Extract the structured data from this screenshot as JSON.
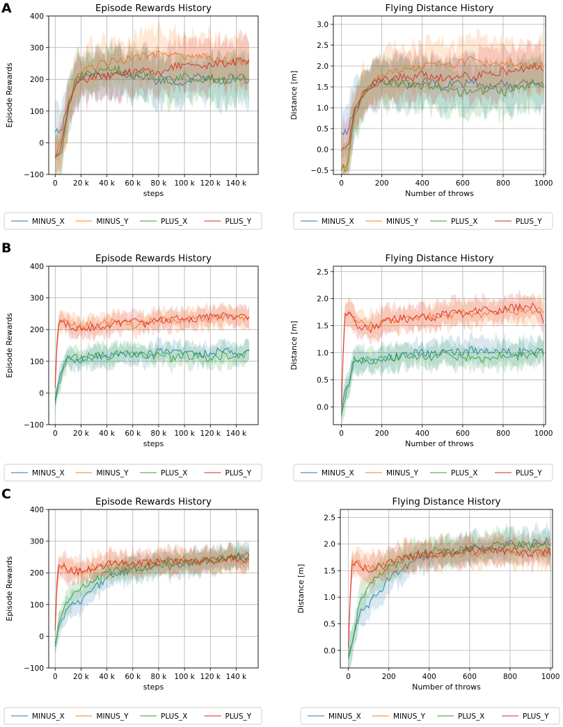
{
  "figure": {
    "panel_labels": [
      "A",
      "B",
      "C"
    ],
    "series_colors": {
      "MINUS_X": "#1f77b4",
      "MINUS_Y": "#ff7f0e",
      "PLUS_X": "#2ca02c",
      "PLUS_Y": "#d62728"
    }
  },
  "chart_data": [
    {
      "id": "A-rewards",
      "panel": "A",
      "type": "line",
      "title": "Episode Rewards History",
      "xlabel": "steps",
      "ylabel": "Episode Rewards",
      "xlim": [
        -5000,
        157000
      ],
      "ylim": [
        -100,
        400
      ],
      "xticks": [
        0,
        20000,
        40000,
        60000,
        80000,
        100000,
        120000,
        140000
      ],
      "xtick_labels": [
        "0",
        "20 k",
        "40 k",
        "60 k",
        "80 k",
        "100 k",
        "120 k",
        "140 k"
      ],
      "yticks": [
        -100,
        0,
        100,
        200,
        300,
        400
      ],
      "ytick_labels": [
        "−100",
        "0",
        "100",
        "200",
        "300",
        "400"
      ],
      "x": [
        0,
        5000,
        10000,
        15000,
        20000,
        30000,
        40000,
        50000,
        60000,
        70000,
        80000,
        90000,
        100000,
        110000,
        120000,
        130000,
        140000,
        150000
      ],
      "band": 70,
      "legend": [
        "MINUS_X",
        "MINUS_Y",
        "PLUS_X",
        "PLUS_Y"
      ],
      "series": [
        {
          "name": "MINUS_X",
          "values": [
            40,
            45,
            120,
            180,
            210,
            220,
            215,
            220,
            205,
            210,
            190,
            200,
            185,
            210,
            205,
            195,
            205,
            195
          ]
        },
        {
          "name": "MINUS_Y",
          "values": [
            -40,
            0,
            110,
            190,
            220,
            240,
            255,
            260,
            265,
            275,
            280,
            285,
            270,
            275,
            265,
            260,
            255,
            250
          ]
        },
        {
          "name": "PLUS_X",
          "values": [
            -40,
            -35,
            100,
            190,
            215,
            225,
            240,
            230,
            215,
            220,
            200,
            195,
            210,
            190,
            205,
            195,
            215,
            200
          ]
        },
        {
          "name": "PLUS_Y",
          "values": [
            -40,
            -10,
            110,
            180,
            200,
            205,
            210,
            215,
            225,
            230,
            215,
            240,
            245,
            235,
            245,
            250,
            255,
            260
          ]
        }
      ]
    },
    {
      "id": "A-distance",
      "panel": "A",
      "type": "line",
      "title": "Flying Distance History",
      "xlabel": "Number of throws",
      "ylabel": "Distance [m]",
      "xlim": [
        -40,
        1010
      ],
      "ylim": [
        -0.6,
        3.2
      ],
      "xticks": [
        0,
        200,
        400,
        600,
        800,
        1000
      ],
      "xtick_labels": [
        "0",
        "200",
        "400",
        "600",
        "800",
        "1000"
      ],
      "yticks": [
        -0.5,
        0.0,
        0.5,
        1.0,
        1.5,
        2.0,
        2.5,
        3.0
      ],
      "ytick_labels": [
        "−0.5",
        "0.0",
        "0.5",
        "1.0",
        "1.5",
        "2.0",
        "2.5",
        "3.0"
      ],
      "x": [
        0,
        30,
        60,
        100,
        150,
        200,
        250,
        300,
        350,
        400,
        450,
        500,
        550,
        600,
        650,
        700,
        750,
        800,
        850,
        900,
        950,
        1000
      ],
      "band": 0.55,
      "legend": [
        "MINUS_X",
        "MINUS_Y",
        "PLUS_X",
        "PLUS_Y"
      ],
      "series": [
        {
          "name": "MINUS_X",
          "values": [
            0.45,
            0.42,
            0.9,
            1.3,
            1.5,
            1.6,
            1.65,
            1.6,
            1.55,
            1.6,
            1.65,
            1.5,
            1.6,
            1.55,
            1.65,
            1.5,
            1.55,
            1.6,
            1.5,
            1.65,
            1.6,
            1.55
          ]
        },
        {
          "name": "MINUS_Y",
          "values": [
            -0.45,
            -0.4,
            0.8,
            1.3,
            1.6,
            1.75,
            1.85,
            1.9,
            1.95,
            2.0,
            2.05,
            2.1,
            2.0,
            2.1,
            2.15,
            2.05,
            2.1,
            2.0,
            2.1,
            2.05,
            2.0,
            2.0
          ]
        },
        {
          "name": "PLUS_X",
          "values": [
            -0.45,
            -0.45,
            0.7,
            1.25,
            1.55,
            1.65,
            1.6,
            1.55,
            1.5,
            1.55,
            1.45,
            1.5,
            1.4,
            1.35,
            1.45,
            1.4,
            1.5,
            1.35,
            1.45,
            1.5,
            1.55,
            1.6
          ]
        },
        {
          "name": "PLUS_Y",
          "values": [
            0.0,
            0.0,
            0.85,
            1.3,
            1.55,
            1.65,
            1.7,
            1.75,
            1.7,
            1.8,
            1.75,
            1.7,
            1.75,
            1.8,
            1.7,
            1.85,
            1.8,
            1.9,
            1.85,
            1.95,
            2.0,
            1.95
          ]
        }
      ]
    },
    {
      "id": "B-rewards",
      "panel": "B",
      "type": "line",
      "title": "Episode Rewards History",
      "xlabel": "steps",
      "ylabel": "Episode Rewards",
      "xlim": [
        -5000,
        157000
      ],
      "ylim": [
        -100,
        400
      ],
      "xticks": [
        0,
        20000,
        40000,
        60000,
        80000,
        100000,
        120000,
        140000
      ],
      "xtick_labels": [
        "0",
        "20 k",
        "40 k",
        "60 k",
        "80 k",
        "100 k",
        "120 k",
        "140 k"
      ],
      "yticks": [
        -100,
        0,
        100,
        200,
        300,
        400
      ],
      "ytick_labels": [
        "−100",
        "0",
        "100",
        "200",
        "300",
        "400"
      ],
      "x": [
        0,
        2000,
        5000,
        10000,
        15000,
        20000,
        30000,
        40000,
        50000,
        60000,
        70000,
        80000,
        90000,
        100000,
        110000,
        120000,
        130000,
        140000,
        150000
      ],
      "band": 30,
      "legend": [
        "MINUS_X",
        "MINUS_Y",
        "PLUS_X",
        "PLUS_Y"
      ],
      "series": [
        {
          "name": "MINUS_X",
          "values": [
            -20,
            30,
            60,
            110,
            105,
            100,
            115,
            120,
            125,
            125,
            120,
            130,
            125,
            130,
            120,
            125,
            135,
            130,
            135
          ]
        },
        {
          "name": "MINUS_Y",
          "values": [
            30,
            225,
            225,
            220,
            215,
            210,
            215,
            220,
            225,
            215,
            225,
            230,
            225,
            235,
            230,
            235,
            240,
            235,
            240
          ]
        },
        {
          "name": "PLUS_X",
          "values": [
            -30,
            20,
            50,
            115,
            120,
            110,
            120,
            115,
            125,
            120,
            115,
            120,
            110,
            120,
            115,
            110,
            120,
            115,
            130
          ]
        },
        {
          "name": "PLUS_Y",
          "values": [
            20,
            220,
            225,
            215,
            205,
            200,
            210,
            215,
            220,
            225,
            215,
            230,
            235,
            230,
            235,
            240,
            245,
            240,
            235
          ]
        }
      ]
    },
    {
      "id": "B-distance",
      "panel": "B",
      "type": "line",
      "title": "Flying Distance History",
      "xlabel": "Number of throws",
      "ylabel": "Distance [m]",
      "xlim": [
        -40,
        1010
      ],
      "ylim": [
        -0.33,
        2.6
      ],
      "xticks": [
        0,
        200,
        400,
        600,
        800,
        1000
      ],
      "xtick_labels": [
        "0",
        "200",
        "400",
        "600",
        "800",
        "1000"
      ],
      "yticks": [
        0.0,
        0.5,
        1.0,
        1.5,
        2.0,
        2.5
      ],
      "ytick_labels": [
        "0.0",
        "0.5",
        "1.0",
        "1.5",
        "2.0",
        "2.5"
      ],
      "x": [
        0,
        15,
        40,
        60,
        100,
        150,
        200,
        250,
        300,
        350,
        400,
        450,
        500,
        550,
        600,
        650,
        700,
        750,
        800,
        850,
        900,
        950,
        1000
      ],
      "band": 0.22,
      "legend": [
        "MINUS_X",
        "MINUS_Y",
        "PLUS_X",
        "PLUS_Y"
      ],
      "series": [
        {
          "name": "MINUS_X",
          "values": [
            -0.1,
            0.2,
            0.5,
            0.9,
            0.85,
            0.8,
            0.9,
            0.92,
            0.95,
            0.98,
            1.0,
            0.95,
            1.0,
            1.02,
            1.0,
            1.05,
            1.0,
            1.02,
            1.05,
            1.0,
            1.02,
            1.0,
            1.05
          ]
        },
        {
          "name": "MINUS_Y",
          "values": [
            0.1,
            1.7,
            1.7,
            1.65,
            1.55,
            1.5,
            1.55,
            1.6,
            1.65,
            1.6,
            1.65,
            1.7,
            1.65,
            1.7,
            1.75,
            1.7,
            1.72,
            1.75,
            1.8,
            1.75,
            1.8,
            1.78,
            1.8
          ]
        },
        {
          "name": "PLUS_X",
          "values": [
            -0.15,
            0.1,
            0.45,
            0.85,
            0.9,
            0.85,
            0.88,
            0.9,
            0.95,
            0.9,
            0.95,
            0.92,
            0.98,
            0.95,
            0.9,
            0.95,
            0.88,
            0.92,
            0.95,
            0.9,
            0.95,
            0.98,
            1.0
          ]
        },
        {
          "name": "PLUS_Y",
          "values": [
            0.05,
            1.65,
            1.7,
            1.6,
            1.45,
            1.45,
            1.55,
            1.6,
            1.65,
            1.6,
            1.7,
            1.65,
            1.7,
            1.75,
            1.7,
            1.75,
            1.8,
            1.75,
            1.8,
            1.85,
            1.82,
            1.85,
            1.6
          ]
        }
      ]
    },
    {
      "id": "C-rewards",
      "panel": "C",
      "type": "line",
      "title": "Episode Rewards History",
      "xlabel": "steps",
      "ylabel": "Episode Rewards",
      "xlim": [
        -5000,
        157000
      ],
      "ylim": [
        -100,
        400
      ],
      "xticks": [
        0,
        20000,
        40000,
        60000,
        80000,
        100000,
        120000,
        140000
      ],
      "xtick_labels": [
        "0",
        "20 k",
        "40 k",
        "60 k",
        "80 k",
        "100 k",
        "120 k",
        "140 k"
      ],
      "yticks": [
        -100,
        0,
        100,
        200,
        300,
        400
      ],
      "ytick_labels": [
        "−100",
        "0",
        "100",
        "200",
        "300",
        "400"
      ],
      "x": [
        0,
        2000,
        5000,
        10000,
        15000,
        20000,
        30000,
        40000,
        50000,
        60000,
        70000,
        80000,
        90000,
        100000,
        110000,
        120000,
        130000,
        140000,
        150000
      ],
      "band": 35,
      "legend": [
        "MINUS_X",
        "MINUS_Y",
        "PLUS_X",
        "PLUS_Y"
      ],
      "series": [
        {
          "name": "MINUS_X",
          "values": [
            -30,
            20,
            50,
            100,
            110,
            105,
            150,
            180,
            200,
            210,
            215,
            225,
            220,
            230,
            235,
            240,
            245,
            250,
            255
          ]
        },
        {
          "name": "MINUS_Y",
          "values": [
            30,
            220,
            225,
            215,
            210,
            205,
            220,
            225,
            230,
            225,
            230,
            235,
            230,
            240,
            235,
            240,
            245,
            240,
            235
          ]
        },
        {
          "name": "PLUS_X",
          "values": [
            -20,
            20,
            60,
            120,
            140,
            150,
            180,
            200,
            210,
            215,
            220,
            225,
            235,
            230,
            240,
            235,
            245,
            250,
            255
          ]
        },
        {
          "name": "PLUS_Y",
          "values": [
            20,
            220,
            225,
            210,
            200,
            205,
            215,
            225,
            230,
            235,
            230,
            235,
            240,
            235,
            240,
            245,
            240,
            245,
            240
          ]
        }
      ]
    },
    {
      "id": "C-distance",
      "panel": "C",
      "type": "line",
      "title": "Flying Distance History",
      "xlabel": "Number of throws",
      "ylabel": "Distance [m]",
      "xlim": [
        -40,
        1010
      ],
      "ylim": [
        -0.33,
        2.65
      ],
      "xticks": [
        0,
        200,
        400,
        600,
        800,
        1000
      ],
      "xtick_labels": [
        "0",
        "200",
        "400",
        "600",
        "800",
        "1000"
      ],
      "yticks": [
        0.0,
        0.5,
        1.0,
        1.5,
        2.0,
        2.5
      ],
      "ytick_labels": [
        "0.0",
        "0.5",
        "1.0",
        "1.5",
        "2.0",
        "2.5"
      ],
      "x": [
        0,
        15,
        40,
        60,
        100,
        150,
        200,
        250,
        300,
        350,
        400,
        450,
        500,
        550,
        600,
        650,
        700,
        750,
        800,
        850,
        900,
        950,
        1000
      ],
      "band": 0.25,
      "legend": [
        "MINUS_X",
        "MINUS_Y",
        "PLUS_X",
        "PLUS_Y"
      ],
      "series": [
        {
          "name": "MINUS_X",
          "values": [
            -0.1,
            0.1,
            0.5,
            0.8,
            0.85,
            1.1,
            1.35,
            1.5,
            1.6,
            1.7,
            1.75,
            1.8,
            1.85,
            1.85,
            1.9,
            1.95,
            1.9,
            1.95,
            2.0,
            1.95,
            2.0,
            2.05,
            2.05
          ]
        },
        {
          "name": "MINUS_Y",
          "values": [
            0.1,
            1.65,
            1.65,
            1.6,
            1.55,
            1.6,
            1.65,
            1.7,
            1.75,
            1.75,
            1.8,
            1.8,
            1.85,
            1.8,
            1.85,
            1.8,
            1.85,
            1.9,
            1.85,
            1.8,
            1.85,
            1.8,
            1.85
          ]
        },
        {
          "name": "PLUS_X",
          "values": [
            -0.15,
            0.05,
            0.55,
            1.0,
            1.2,
            1.4,
            1.55,
            1.65,
            1.75,
            1.8,
            1.85,
            1.9,
            1.85,
            1.9,
            1.95,
            1.9,
            1.95,
            2.0,
            1.95,
            2.0,
            1.95,
            2.0,
            1.95
          ]
        },
        {
          "name": "PLUS_Y",
          "values": [
            0.05,
            1.65,
            1.65,
            1.6,
            1.5,
            1.55,
            1.65,
            1.7,
            1.75,
            1.8,
            1.8,
            1.85,
            1.8,
            1.85,
            1.9,
            1.85,
            1.9,
            1.85,
            1.9,
            1.85,
            1.8,
            1.85,
            1.85
          ]
        }
      ]
    }
  ]
}
